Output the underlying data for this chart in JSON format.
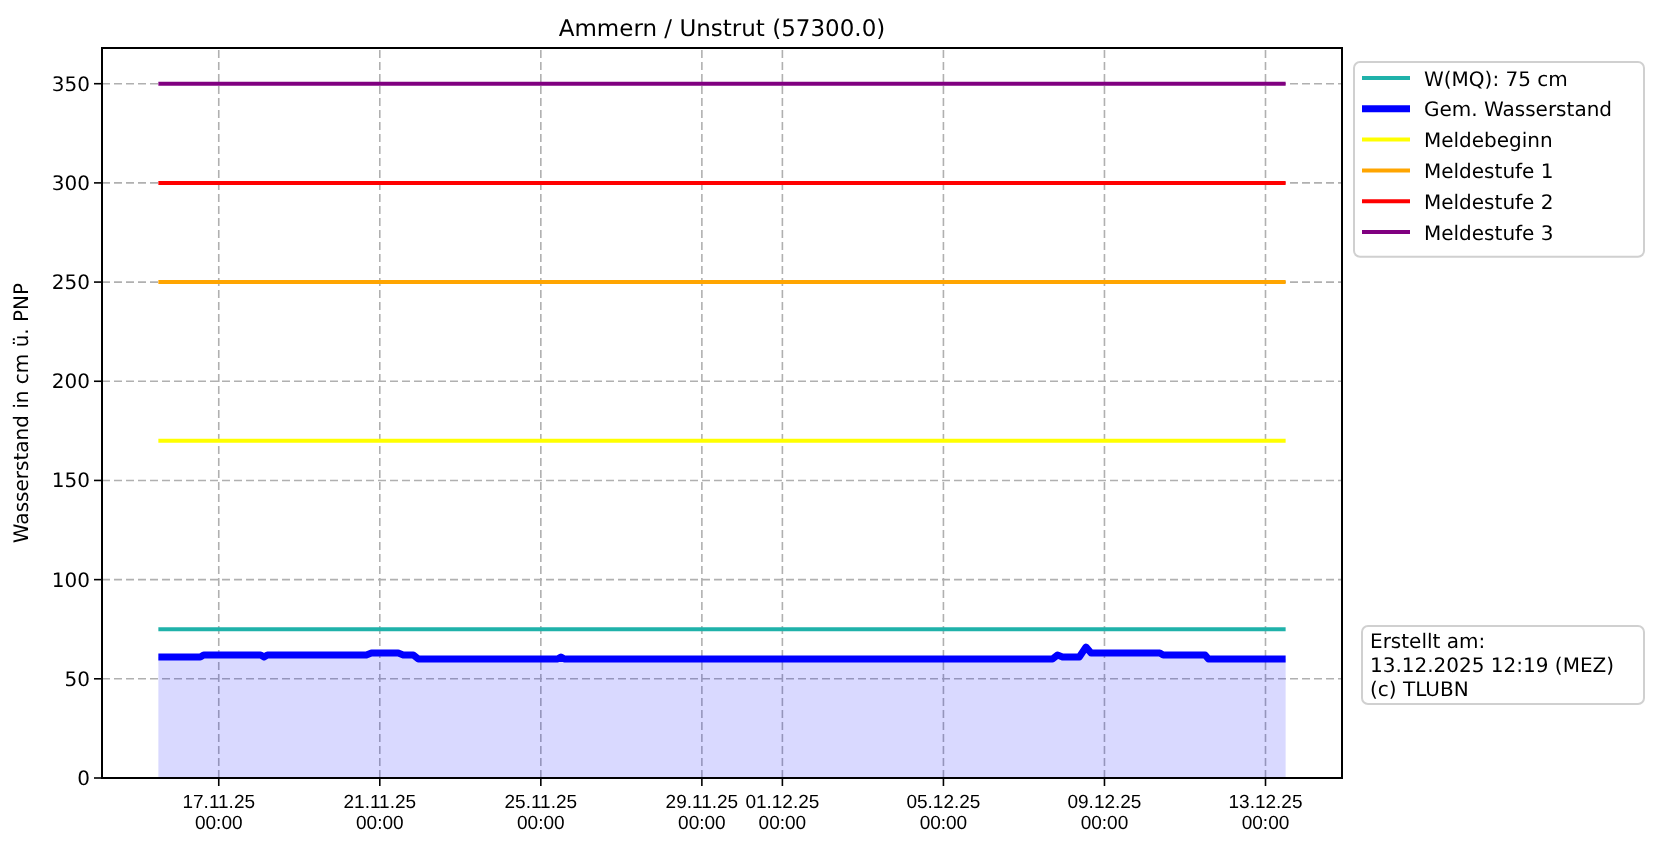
{
  "chart_data": {
    "type": "line",
    "title": "Ammern / Unstrut (57300.0)",
    "ylabel": "Wasserstand in cm ü. PNP",
    "xlim": [
      "2025-11-14T02:24",
      "2025-12-14T21:36"
    ],
    "xticks": [
      {
        "value": "2025-11-17",
        "label": "17.11.25\n00:00"
      },
      {
        "value": "2025-11-21",
        "label": "21.11.25\n00:00"
      },
      {
        "value": "2025-11-25",
        "label": "25.11.25\n00:00"
      },
      {
        "value": "2025-11-29",
        "label": "29.11.25\n00:00"
      },
      {
        "value": "2025-12-01",
        "label": "01.12.25\n00:00"
      },
      {
        "value": "2025-12-05",
        "label": "05.12.25\n00:00"
      },
      {
        "value": "2025-12-09",
        "label": "09.12.25\n00:00"
      },
      {
        "value": "2025-12-13",
        "label": "13.12.25\n00:00"
      }
    ],
    "ylim": [
      0,
      368
    ],
    "yticks": [
      0,
      50,
      100,
      150,
      200,
      250,
      300,
      350
    ],
    "grid": true,
    "legend": "top right",
    "series": [
      {
        "name": "W(MQ): 75 cm",
        "color": "#20b2aa",
        "x": [
          "2025-11-15T12:00",
          "2025-12-13T12:00"
        ],
        "values": [
          75,
          75
        ]
      },
      {
        "name": "Gem. Wasserstand",
        "type": "area",
        "color": "#0000ff",
        "x": [
          "2025-11-15T12:00",
          "2025-11-16T13:00",
          "2025-11-16T15:00",
          "2025-11-18T01:00",
          "2025-11-18T03:00",
          "2025-11-18T05:00",
          "2025-11-20T16:00",
          "2025-11-20T19:00",
          "2025-11-21T11:00",
          "2025-11-21T14:00",
          "2025-11-21T20:00",
          "2025-11-21T23:00",
          "2025-11-25T10:00",
          "2025-11-25T12:00",
          "2025-11-25T14:00",
          "2025-12-07T17:00",
          "2025-12-07T20:00",
          "2025-12-07T23:00",
          "2025-12-08T09:00",
          "2025-12-08T13:00",
          "2025-12-08T16:00",
          "2025-12-10T09:00",
          "2025-12-10T11:00",
          "2025-12-11T12:00",
          "2025-12-11T14:00",
          "2025-12-13T12:00"
        ],
        "values": [
          61,
          61,
          62,
          62,
          61,
          62,
          62,
          63,
          63,
          62,
          62,
          60,
          60,
          61,
          60,
          60,
          62,
          61,
          61,
          66,
          63,
          63,
          62,
          62,
          60,
          60
        ]
      },
      {
        "name": "Meldebeginn",
        "color": "#ffff00",
        "x": [
          "2025-11-15T12:00",
          "2025-12-13T12:00"
        ],
        "values": [
          170,
          170
        ]
      },
      {
        "name": "Meldestufe 1",
        "color": "#ffa500",
        "x": [
          "2025-11-15T12:00",
          "2025-12-13T12:00"
        ],
        "values": [
          250,
          250
        ]
      },
      {
        "name": "Meldestufe 2",
        "color": "#ff0000",
        "x": [
          "2025-11-15T12:00",
          "2025-12-13T12:00"
        ],
        "values": [
          300,
          300
        ]
      },
      {
        "name": "Meldestufe 3",
        "color": "#800080",
        "x": [
          "2025-11-15T12:00",
          "2025-12-13T12:00"
        ],
        "values": [
          350,
          350
        ]
      }
    ],
    "annotations": [
      "Erstellt am:\n13.12.2025 12:19 (MEZ)\n(c) TLUBN"
    ]
  }
}
